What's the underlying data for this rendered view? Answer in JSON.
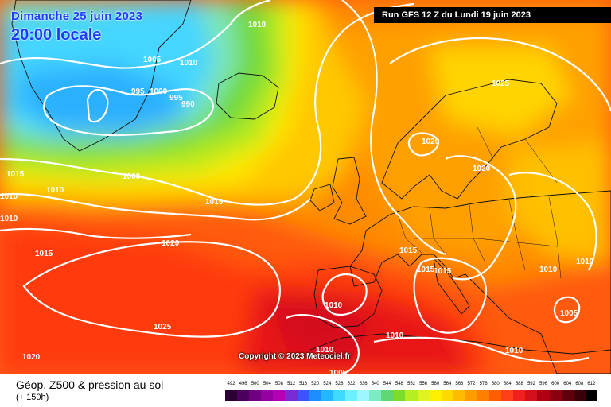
{
  "header": {
    "date": "Dimanche 25 juin 2023",
    "local_time": "20:00 locale",
    "run": "Run GFS 12 Z du Lundi 19 juin 2023"
  },
  "copyright": "Copyright © 2023 Meteociel.fr",
  "footer": {
    "title": "Géop. Z500 & pression au sol",
    "lead": "(+ 150h)"
  },
  "isobar_labels": [
    "1010",
    "1005",
    "1010",
    "995",
    "1000",
    "995",
    "990",
    "1015",
    "1010",
    "1000",
    "1015",
    "1010",
    "1020",
    "1015",
    "1025",
    "1020",
    "1020",
    "1025",
    "1015",
    "1015",
    "1015",
    "1010",
    "1010",
    "1010",
    "1005",
    "1010",
    "1010",
    "1010",
    "1005",
    "1020",
    "1010"
  ],
  "legend": {
    "levels": [
      "492",
      "496",
      "500",
      "504",
      "508",
      "512",
      "516",
      "520",
      "524",
      "528",
      "532",
      "536",
      "540",
      "544",
      "548",
      "552",
      "556",
      "560",
      "564",
      "568",
      "572",
      "576",
      "580",
      "584",
      "588",
      "592",
      "596",
      "600",
      "604",
      "608",
      "612"
    ],
    "colors": [
      "#2b0035",
      "#4c005e",
      "#700081",
      "#9500a4",
      "#b400b4",
      "#7a2bd3",
      "#3a55ff",
      "#1f8cff",
      "#23b7ff",
      "#40d9ff",
      "#6cf0ff",
      "#9ef7ff",
      "#7cecc4",
      "#5fd873",
      "#7bdd2a",
      "#b5ee21",
      "#dff31e",
      "#fff000",
      "#ffd800",
      "#ffbb00",
      "#ff9d00",
      "#ff7f00",
      "#ff5f00",
      "#ff3f1a",
      "#f02020",
      "#d4101a",
      "#b00012",
      "#8a0010",
      "#60000d",
      "#3a0008",
      "#000000"
    ]
  }
}
